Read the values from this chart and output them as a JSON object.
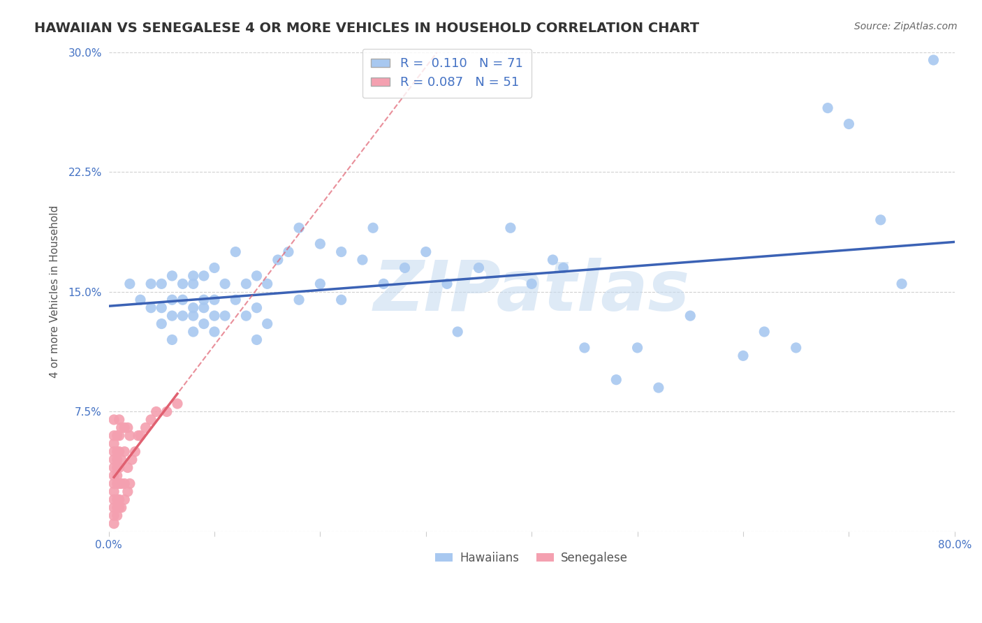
{
  "title": "HAWAIIAN VS SENEGALESE 4 OR MORE VEHICLES IN HOUSEHOLD CORRELATION CHART",
  "source": "Source: ZipAtlas.com",
  "ylabel": "4 or more Vehicles in Household",
  "xlabel": "",
  "xlim": [
    0.0,
    0.8
  ],
  "ylim": [
    0.0,
    0.3
  ],
  "xticks": [
    0.0,
    0.1,
    0.2,
    0.3,
    0.4,
    0.5,
    0.6,
    0.7,
    0.8
  ],
  "yticks": [
    0.0,
    0.075,
    0.15,
    0.225,
    0.3
  ],
  "hawaiian_R": 0.11,
  "hawaiian_N": 71,
  "senegalese_R": 0.087,
  "senegalese_N": 51,
  "hawaiian_color": "#A8C8F0",
  "senegalese_color": "#F4A0B0",
  "hawaiian_line_color": "#3B62B5",
  "senegalese_line_color": "#E06070",
  "hawaiian_scatter_x": [
    0.02,
    0.03,
    0.04,
    0.04,
    0.05,
    0.05,
    0.05,
    0.06,
    0.06,
    0.06,
    0.06,
    0.07,
    0.07,
    0.07,
    0.08,
    0.08,
    0.08,
    0.08,
    0.08,
    0.09,
    0.09,
    0.09,
    0.09,
    0.1,
    0.1,
    0.1,
    0.1,
    0.11,
    0.11,
    0.12,
    0.12,
    0.13,
    0.13,
    0.14,
    0.14,
    0.14,
    0.15,
    0.15,
    0.16,
    0.17,
    0.18,
    0.18,
    0.2,
    0.2,
    0.22,
    0.22,
    0.24,
    0.25,
    0.26,
    0.28,
    0.3,
    0.32,
    0.33,
    0.35,
    0.38,
    0.4,
    0.42,
    0.43,
    0.45,
    0.48,
    0.5,
    0.52,
    0.55,
    0.6,
    0.62,
    0.65,
    0.68,
    0.7,
    0.73,
    0.75,
    0.78
  ],
  "hawaiian_scatter_y": [
    0.155,
    0.145,
    0.14,
    0.155,
    0.13,
    0.14,
    0.155,
    0.12,
    0.135,
    0.145,
    0.16,
    0.135,
    0.145,
    0.155,
    0.125,
    0.135,
    0.14,
    0.155,
    0.16,
    0.13,
    0.14,
    0.145,
    0.16,
    0.125,
    0.135,
    0.145,
    0.165,
    0.135,
    0.155,
    0.145,
    0.175,
    0.135,
    0.155,
    0.12,
    0.14,
    0.16,
    0.13,
    0.155,
    0.17,
    0.175,
    0.145,
    0.19,
    0.155,
    0.18,
    0.145,
    0.175,
    0.17,
    0.19,
    0.155,
    0.165,
    0.175,
    0.155,
    0.125,
    0.165,
    0.19,
    0.155,
    0.17,
    0.165,
    0.115,
    0.095,
    0.115,
    0.09,
    0.135,
    0.11,
    0.125,
    0.115,
    0.265,
    0.255,
    0.195,
    0.155,
    0.295
  ],
  "senegalese_scatter_x": [
    0.005,
    0.005,
    0.005,
    0.005,
    0.005,
    0.005,
    0.005,
    0.005,
    0.005,
    0.005,
    0.005,
    0.005,
    0.005,
    0.008,
    0.008,
    0.008,
    0.008,
    0.008,
    0.008,
    0.008,
    0.008,
    0.008,
    0.01,
    0.01,
    0.01,
    0.01,
    0.01,
    0.01,
    0.01,
    0.012,
    0.012,
    0.012,
    0.012,
    0.015,
    0.015,
    0.015,
    0.015,
    0.018,
    0.018,
    0.018,
    0.02,
    0.02,
    0.022,
    0.025,
    0.028,
    0.03,
    0.035,
    0.04,
    0.045,
    0.055,
    0.065
  ],
  "senegalese_scatter_y": [
    0.005,
    0.01,
    0.015,
    0.02,
    0.025,
    0.03,
    0.035,
    0.04,
    0.045,
    0.05,
    0.055,
    0.06,
    0.07,
    0.01,
    0.015,
    0.02,
    0.03,
    0.035,
    0.04,
    0.045,
    0.05,
    0.06,
    0.015,
    0.02,
    0.03,
    0.04,
    0.05,
    0.06,
    0.07,
    0.015,
    0.03,
    0.045,
    0.065,
    0.02,
    0.03,
    0.05,
    0.065,
    0.025,
    0.04,
    0.065,
    0.03,
    0.06,
    0.045,
    0.05,
    0.06,
    0.06,
    0.065,
    0.07,
    0.075,
    0.075,
    0.08
  ],
  "watermark": "ZIPatlas",
  "background_color": "#FFFFFF",
  "grid_color": "#CCCCCC",
  "title_fontsize": 14,
  "axis_label_fontsize": 11,
  "tick_fontsize": 11
}
